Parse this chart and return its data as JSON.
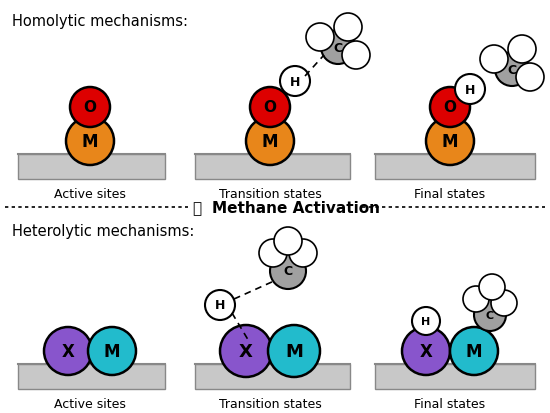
{
  "bg_color": "#ffffff",
  "surface_color_top": "#d0d0d0",
  "surface_color_bot": "#b0b0b0",
  "surface_edge_color": "#888888",
  "M_color": "#e8861a",
  "O_color": "#dd0000",
  "H_color": "#ffffff",
  "C_color": "#a0a0a0",
  "X_color": "#8855cc",
  "M2_color": "#22bbcc",
  "title_homolytic": "Homolytic mechanisms:",
  "title_heterolytic": "Heterolytic mechanisms:",
  "center_text": " Methane Activation",
  "label_active": "Active sites",
  "label_transition": "Transition states",
  "label_final": "Final states"
}
